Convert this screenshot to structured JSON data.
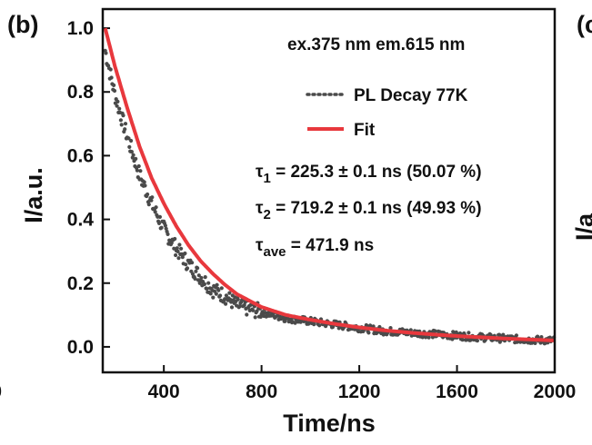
{
  "chart_data": {
    "type": "scatter",
    "panel_label": "(b)",
    "neighbor_panel_label": "(c",
    "neighbor_axis_fragment": "I/a",
    "left_cut_tick": "00",
    "xlabel": "Time/ns",
    "ylabel": "I/a.u.",
    "xlim": [
      150,
      2000
    ],
    "ylim": [
      -0.08,
      1.06
    ],
    "x_ticks": [
      400,
      800,
      1200,
      1600,
      2000
    ],
    "y_ticks": [
      "0.0",
      "0.2",
      "0.4",
      "0.6",
      "0.8",
      "1.0"
    ],
    "grid": false,
    "legend_position": "top-right",
    "excitation_note": "ex.375 nm em.615 nm",
    "series": [
      {
        "name": "PL Decay 77K",
        "style": "dotted",
        "color": "#4a4a4a",
        "x": [
          160,
          200,
          250,
          300,
          350,
          400,
          450,
          500,
          550,
          600,
          650,
          700,
          800,
          900,
          1000,
          1100,
          1200,
          1300,
          1400,
          1500,
          1600,
          1700,
          1800,
          1900,
          2000
        ],
        "y": [
          0.93,
          0.79,
          0.66,
          0.54,
          0.45,
          0.37,
          0.31,
          0.26,
          0.22,
          0.18,
          0.16,
          0.13,
          0.11,
          0.09,
          0.08,
          0.07,
          0.06,
          0.05,
          0.045,
          0.04,
          0.035,
          0.03,
          0.026,
          0.022,
          0.02
        ]
      },
      {
        "name": "Fit",
        "style": "solid",
        "color": "#e8383d",
        "x": [
          160,
          200,
          250,
          300,
          350,
          400,
          450,
          500,
          550,
          600,
          650,
          700,
          800,
          900,
          1000,
          1100,
          1200,
          1300,
          1400,
          1500,
          1600,
          1700,
          1800,
          1900,
          2000
        ],
        "y": [
          1.0,
          0.88,
          0.75,
          0.63,
          0.53,
          0.45,
          0.38,
          0.32,
          0.27,
          0.23,
          0.195,
          0.165,
          0.125,
          0.1,
          0.085,
          0.072,
          0.061,
          0.052,
          0.045,
          0.039,
          0.034,
          0.03,
          0.026,
          0.023,
          0.02
        ]
      }
    ],
    "annotations": [
      {
        "sym": "τ",
        "sub": "1",
        "text": " = 225.3 ± 0.1 ns (50.07 %)"
      },
      {
        "sym": "τ",
        "sub": "2",
        "text": " = 719.2 ± 0.1 ns (49.93 %)"
      },
      {
        "sym": "τ",
        "sub": "ave",
        "text": " = 471.9 ns"
      }
    ]
  }
}
